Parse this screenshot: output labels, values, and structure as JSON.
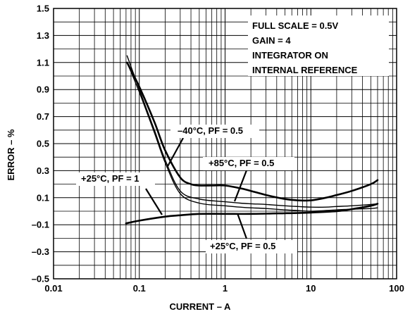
{
  "chart_data": {
    "type": "line",
    "title": "",
    "xlabel": "CURRENT – A",
    "ylabel": "ERROR – %",
    "xscale": "log",
    "xlim": [
      0.01,
      100
    ],
    "ylim": [
      -0.5,
      1.5
    ],
    "grid": true,
    "x_ticks": [
      "0.01",
      "0.1",
      "1",
      "10",
      "100"
    ],
    "y_ticks": [
      "1.5",
      "1.3",
      "1.1",
      "0.9",
      "0.7",
      "0.5",
      "0.3",
      "0.1",
      "–0.1",
      "–0.3",
      "–0.5"
    ],
    "y_tick_values": [
      1.5,
      1.3,
      1.1,
      0.9,
      0.7,
      0.5,
      0.3,
      0.1,
      -0.1,
      -0.3,
      -0.5
    ],
    "conditions": [
      "FULL SCALE = 0.5V",
      "GAIN = 4",
      "INTEGRATOR ON",
      "INTERNAL REFERENCE"
    ],
    "series": [
      {
        "name": "–40°C, PF = 0.5",
        "weight": "heavy",
        "x": [
          0.072,
          0.1,
          0.15,
          0.2,
          0.3,
          0.4,
          0.5,
          0.7,
          1.0,
          1.5,
          2,
          3,
          5,
          7,
          10,
          15,
          20,
          30,
          50,
          60
        ],
        "y": [
          1.1,
          0.92,
          0.66,
          0.45,
          0.25,
          0.2,
          0.19,
          0.19,
          0.19,
          0.17,
          0.15,
          0.12,
          0.09,
          0.08,
          0.08,
          0.1,
          0.12,
          0.15,
          0.2,
          0.23
        ]
      },
      {
        "name": "+85°C, PF = 0.5",
        "weight": "light",
        "x": [
          0.072,
          0.1,
          0.15,
          0.2,
          0.3,
          0.5,
          1.0,
          1.5,
          2,
          3,
          5,
          7,
          10,
          15,
          20,
          30,
          50,
          60
        ],
        "y": [
          1.15,
          0.9,
          0.6,
          0.38,
          0.15,
          0.09,
          0.07,
          0.06,
          0.055,
          0.05,
          0.04,
          0.035,
          0.03,
          0.03,
          0.035,
          0.04,
          0.05,
          0.055
        ]
      },
      {
        "name": "+25°C, PF = 0.5",
        "weight": "light",
        "x": [
          0.072,
          0.1,
          0.15,
          0.2,
          0.3,
          0.5,
          1.0,
          1.5,
          2,
          3,
          5,
          7,
          10,
          15,
          20,
          30,
          50,
          60
        ],
        "y": [
          1.1,
          0.88,
          0.58,
          0.36,
          0.13,
          0.06,
          0.04,
          0.03,
          0.025,
          0.02,
          0.01,
          0.005,
          0.0,
          0.005,
          0.01,
          0.015,
          0.02,
          0.025
        ]
      },
      {
        "name": "+25°C, PF = 1",
        "weight": "heavy",
        "x": [
          0.07,
          0.1,
          0.2,
          0.3,
          0.5,
          1.0,
          2,
          5,
          10,
          20,
          30,
          50,
          60
        ],
        "y": [
          -0.09,
          -0.07,
          -0.04,
          -0.03,
          -0.02,
          -0.02,
          -0.02,
          -0.015,
          -0.01,
          0.0,
          0.015,
          0.04,
          0.055
        ]
      }
    ],
    "annotations": [
      {
        "text": "–40°C, PF = 0.5",
        "series": 0
      },
      {
        "text": "+85°C, PF = 0.5",
        "series": 1
      },
      {
        "text": "+25°C, PF = 1",
        "series": 3
      },
      {
        "text": "+25°C, PF = 0.5",
        "series": 2
      }
    ]
  }
}
